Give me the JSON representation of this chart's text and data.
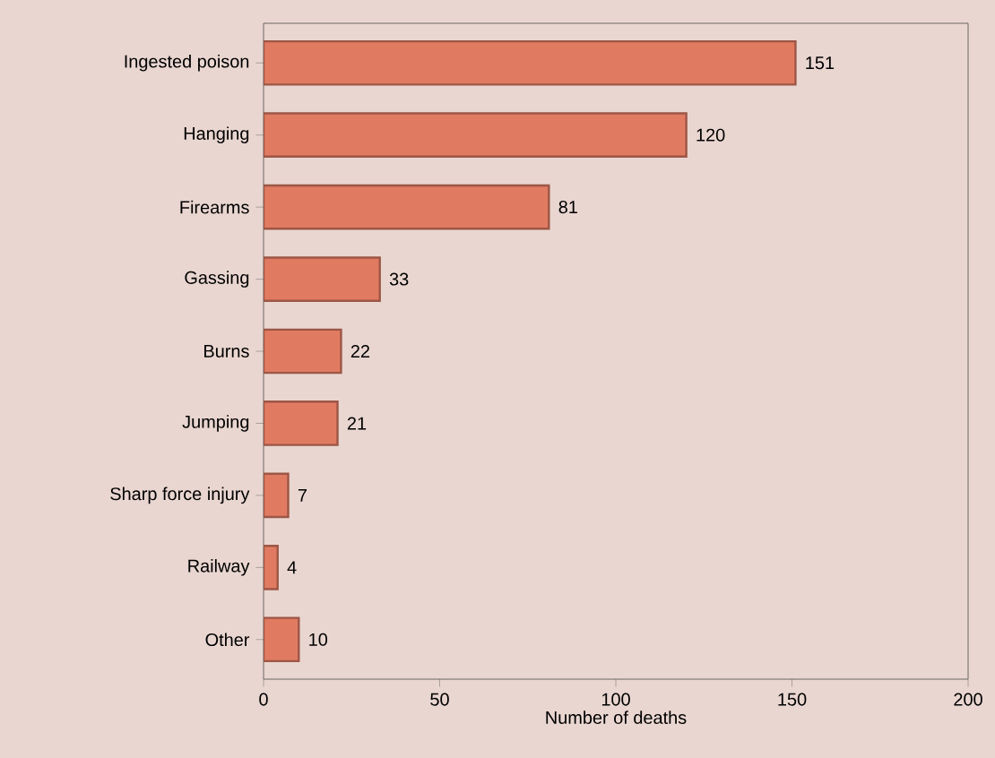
{
  "chart_data": {
    "type": "bar",
    "orientation": "horizontal",
    "xlabel": "Number of deaths",
    "categories": [
      "Ingested poison",
      "Hanging",
      "Firearms",
      "Gassing",
      "Burns",
      "Jumping",
      "Sharp force injury",
      "Railway",
      "Other"
    ],
    "values": [
      151,
      120,
      81,
      33,
      22,
      21,
      7,
      4,
      10
    ],
    "color": "#e07b62",
    "xlim": [
      0,
      200
    ],
    "xticks": [
      0,
      50,
      100,
      150,
      200
    ],
    "data_labels": true
  }
}
